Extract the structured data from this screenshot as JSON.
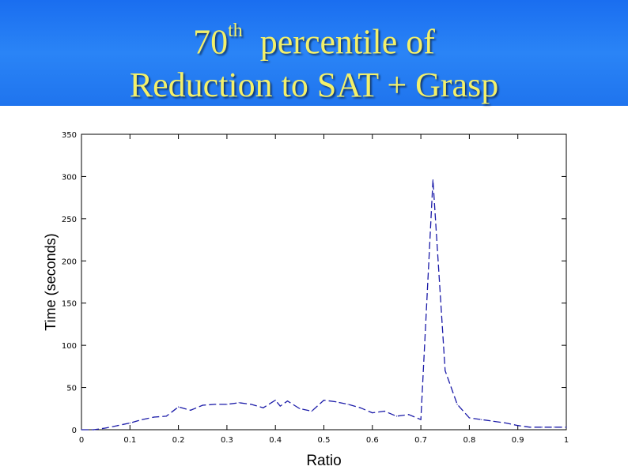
{
  "slide": {
    "title_number": "70",
    "title_superscript": "th",
    "title_rest": "percentile of",
    "title_line2": "Reduction to SAT + Grasp",
    "banner_color": "#2a84f6",
    "title_color": "#f3f06a"
  },
  "chart_data": {
    "type": "line",
    "xlabel": "Ratio",
    "ylabel": "Time (seconds)",
    "xlim": [
      0,
      1
    ],
    "ylim": [
      0,
      350
    ],
    "xticks": [
      "0",
      "0.1",
      "0.2",
      "0.3",
      "0.4",
      "0.5",
      "0.6",
      "0.7",
      "0.8",
      "0.9",
      "1"
    ],
    "yticks": [
      "0",
      "50",
      "100",
      "150",
      "200",
      "250",
      "300",
      "350"
    ],
    "grid": false,
    "series": [
      {
        "color": "#1a1aa8",
        "style": "dash",
        "x": [
          0.0,
          0.025,
          0.05,
          0.075,
          0.1,
          0.125,
          0.15,
          0.175,
          0.2,
          0.225,
          0.25,
          0.275,
          0.3,
          0.325,
          0.35,
          0.375,
          0.4,
          0.41,
          0.425,
          0.45,
          0.475,
          0.5,
          0.525,
          0.55,
          0.575,
          0.6,
          0.625,
          0.65,
          0.675,
          0.7,
          0.725,
          0.75,
          0.775,
          0.8,
          0.825,
          0.85,
          0.875,
          0.9,
          0.925,
          0.95,
          0.975,
          1.0
        ],
        "y": [
          0,
          0,
          2,
          5,
          8,
          12,
          15,
          16,
          27,
          23,
          29,
          30,
          30,
          32,
          30,
          26,
          35,
          28,
          34,
          25,
          22,
          35,
          33,
          30,
          26,
          20,
          22,
          16,
          18,
          12,
          296,
          70,
          30,
          14,
          12,
          10,
          8,
          5,
          3,
          3,
          3,
          3
        ]
      }
    ]
  }
}
